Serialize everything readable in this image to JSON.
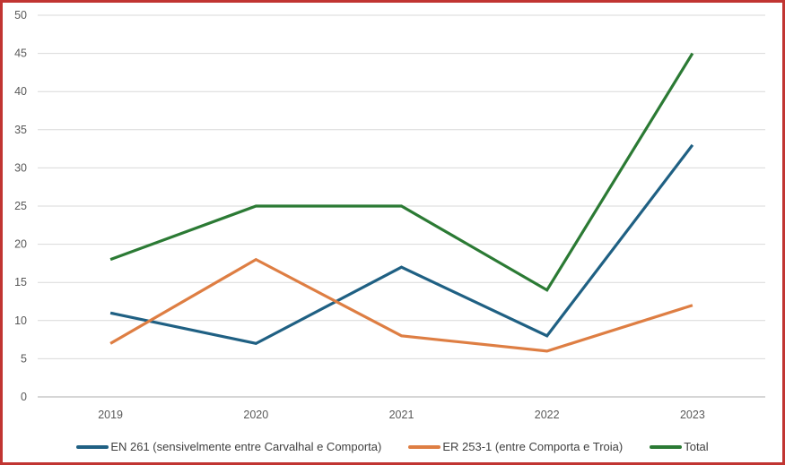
{
  "chart_data": {
    "type": "line",
    "title": "",
    "xlabel": "",
    "ylabel": "",
    "categories": [
      "2019",
      "2020",
      "2021",
      "2022",
      "2023"
    ],
    "series": [
      {
        "name": "EN 261 (sensivelmente entre Carvalhal e Comporta)",
        "color": "#1F6083",
        "values": [
          11,
          7,
          17,
          8,
          33
        ]
      },
      {
        "name": "ER 253-1 (entre Comporta e Troia)",
        "color": "#DE7E43",
        "values": [
          7,
          18,
          8,
          6,
          12
        ]
      },
      {
        "name": "Total",
        "color": "#2B7A34",
        "values": [
          18,
          25,
          25,
          14,
          45
        ]
      }
    ],
    "ylim": [
      0,
      50
    ],
    "y_ticks": [
      0,
      5,
      10,
      15,
      20,
      25,
      30,
      35,
      40,
      45,
      50
    ],
    "grid": true,
    "legend_position": "bottom"
  },
  "colors": {
    "background": "#FFFFFF",
    "border": "#C13532",
    "gridline": "#D9D9D9",
    "axis_line": "#C8C8C8",
    "tick_label": "#595959",
    "legend_text": "#404040"
  }
}
